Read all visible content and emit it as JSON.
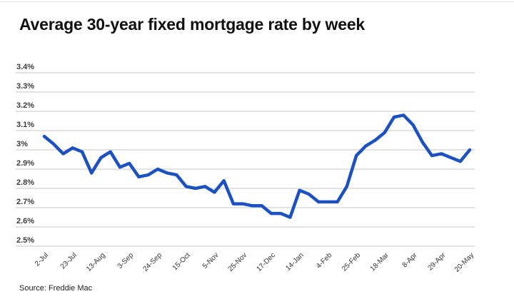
{
  "page": {
    "title": "Average 30-year fixed mortgage rate by week",
    "source": "Source: Freddie Mac"
  },
  "chart_data": {
    "type": "line",
    "title": "Average 30-year fixed mortgage rate by week",
    "series_name": "30-year fixed mortgage rate",
    "unit": "percent",
    "values": [
      3.07,
      3.03,
      2.98,
      3.01,
      2.99,
      2.88,
      2.96,
      2.99,
      2.91,
      2.93,
      2.86,
      2.87,
      2.9,
      2.88,
      2.87,
      2.81,
      2.8,
      2.81,
      2.78,
      2.84,
      2.72,
      2.72,
      2.71,
      2.71,
      2.67,
      2.67,
      2.65,
      2.79,
      2.77,
      2.73,
      2.73,
      2.73,
      2.81,
      2.97,
      3.02,
      3.05,
      3.09,
      3.17,
      3.18,
      3.13,
      3.04,
      2.97,
      2.98,
      2.96,
      2.94,
      3.0
    ],
    "x_tick_labels": [
      "2-Jul",
      "23-Jul",
      "13-Aug",
      "3-Sep",
      "24-Sep",
      "15-Oct",
      "5-Nov",
      "25-Nov",
      "17-Dec",
      "14-Jan",
      "4-Feb",
      "25-Feb",
      "18-Mar",
      "8-Apr",
      "29-Apr",
      "20-May"
    ],
    "x_tick_every": 3,
    "y_tick_labels": [
      "3.4%",
      "3.3%",
      "3.2%",
      "3.1%",
      "3%",
      "2.9%",
      "2.8%",
      "2.7%",
      "2.6%",
      "2.5%"
    ],
    "y_tick_values": [
      3.4,
      3.3,
      3.2,
      3.1,
      3.0,
      2.9,
      2.8,
      2.7,
      2.6,
      2.5
    ],
    "ylim": [
      2.5,
      3.4
    ],
    "grid": "horizontal",
    "legend": "none",
    "line_color": "#1b51c3",
    "grid_color": "#d2d2d2",
    "source_label": "Source: Freddie Mac"
  }
}
